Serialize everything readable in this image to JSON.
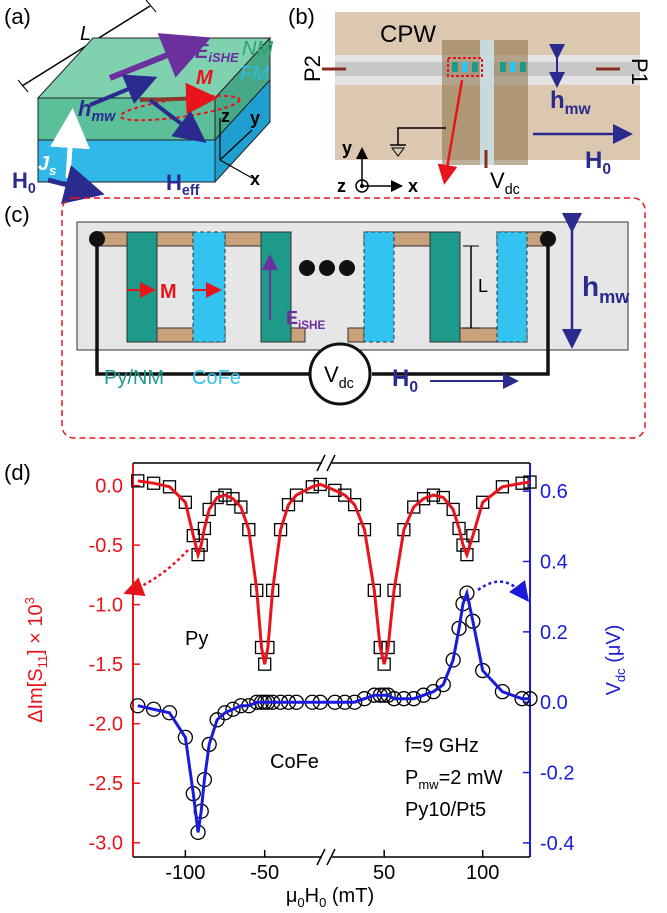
{
  "panels": {
    "a": {
      "label": "(a)",
      "length": "L",
      "nm": "NM",
      "fm": "FM",
      "e": "E",
      "e_sub": "iSHE",
      "m": "M",
      "h": "h",
      "h_sub": "mw",
      "j": "J",
      "j_sub": "s",
      "heff": "H",
      "heff_sub": "eff",
      "h0": "H",
      "h0_sub": "0",
      "x": "x",
      "y": "y",
      "z": "z"
    },
    "b": {
      "label": "(b)",
      "cpw": "CPW",
      "p1": "P1",
      "p2": "P2",
      "h": "h",
      "h_sub": "mw",
      "h0": "H",
      "h0_sub": "0",
      "v": "V",
      "v_sub": "dc",
      "x": "x",
      "y": "y",
      "z": "z"
    },
    "c": {
      "label": "(c)",
      "m": "M",
      "e": "E",
      "e_sub": "iSHE",
      "length": "L",
      "h": "h",
      "h_sub": "mw",
      "py": "Py/NM",
      "cofe": "CoFe",
      "h0": "H",
      "h0_sub": "0",
      "v": "V",
      "v_sub": "dc"
    },
    "d": {
      "label": "(d)"
    }
  },
  "chart_data": {
    "type": "scatter",
    "x": [
      -130,
      -120,
      -110,
      -100,
      -95,
      -92,
      -90,
      -88,
      -85,
      -80,
      -75,
      -70,
      -65,
      -60,
      -55,
      -52,
      -50,
      -48,
      -45,
      -40,
      -35,
      -30,
      -20,
      -15,
      25,
      30,
      35,
      40,
      45,
      48,
      50,
      52,
      55,
      60,
      65,
      70,
      75,
      80,
      85,
      88,
      90,
      92,
      95,
      100,
      110,
      120,
      124
    ],
    "xlim": [
      -133,
      124
    ],
    "xbreak": [
      -12,
      22
    ],
    "xticks": [
      -100,
      -50,
      50,
      100
    ],
    "x_label": [
      "μ",
      "0",
      "H",
      "0",
      " (mT)"
    ],
    "ylim": [
      -3.12,
      0.19
    ],
    "yticks": [
      {
        "value": 0,
        "label": "0.0"
      },
      -0.5,
      {
        "value": -1,
        "label": "-1.0"
      },
      -1.5,
      {
        "value": -2,
        "label": "-2.0"
      },
      -2.5,
      {
        "value": -3,
        "label": "-3.0"
      }
    ],
    "y_label": [
      "ΔIm[S",
      "11",
      "] × 10",
      "3"
    ],
    "y_color": "#e8141b",
    "y2lim": [
      -0.44,
      0.68
    ],
    "y2ticks": [
      0.6,
      0.4,
      0.2,
      {
        "value": 0,
        "label": "0.0"
      },
      -0.2,
      -0.4
    ],
    "y2_label": [
      "V",
      "dc",
      " (μV)"
    ],
    "y2_color": "#1a1adb",
    "series": [
      {
        "name": "Py",
        "axis": "y",
        "marker": "square",
        "color": "#000000",
        "fit_color": "#e8141b",
        "values": [
          0.04,
          0.02,
          -0.01,
          -0.14,
          -0.42,
          -0.58,
          -0.5,
          -0.36,
          -0.2,
          -0.1,
          -0.08,
          -0.11,
          -0.18,
          -0.37,
          -0.88,
          -1.36,
          -1.5,
          -1.36,
          -0.88,
          -0.37,
          -0.16,
          -0.08,
          -0.01,
          0.01,
          -0.04,
          -0.08,
          -0.16,
          -0.37,
          -0.88,
          -1.36,
          -1.5,
          -1.36,
          -0.88,
          -0.37,
          -0.18,
          -0.11,
          -0.08,
          -0.1,
          -0.2,
          -0.36,
          -0.5,
          -0.58,
          -0.42,
          -0.14,
          -0.01,
          0.02,
          0.03
        ]
      },
      {
        "name": "CoFe",
        "axis": "y2",
        "marker": "circle",
        "color": "#000000",
        "fit_color": "#1a1adb",
        "values": [
          -0.01,
          -0.02,
          -0.03,
          -0.1,
          -0.26,
          -0.37,
          -0.31,
          -0.22,
          -0.12,
          -0.05,
          -0.03,
          -0.02,
          -0.01,
          -0.01,
          0,
          0,
          0,
          0,
          0,
          0,
          0,
          0,
          0,
          0,
          0,
          0,
          0,
          0.01,
          0.02,
          0.02,
          0.02,
          0.02,
          0.01,
          0.01,
          0.01,
          0.02,
          0.03,
          0.05,
          0.12,
          0.21,
          0.28,
          0.31,
          0.23,
          0.09,
          0.03,
          0.01,
          0.01
        ]
      }
    ],
    "annotations": {
      "freq": "f=9 GHz",
      "power": [
        "P",
        "mw",
        "=2 mW"
      ],
      "sample": "Py10/Pt5"
    }
  }
}
